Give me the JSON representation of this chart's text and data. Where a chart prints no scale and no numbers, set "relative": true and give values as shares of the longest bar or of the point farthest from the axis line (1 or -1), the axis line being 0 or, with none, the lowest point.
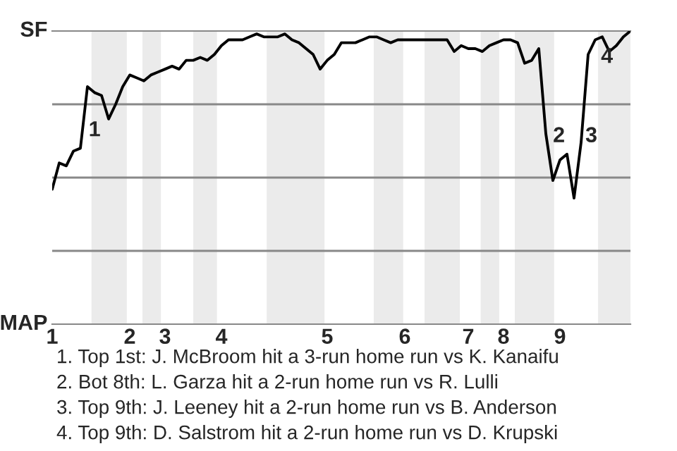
{
  "chart_data": {
    "type": "line",
    "relative": true,
    "categories": [
      "1",
      null,
      null,
      null,
      null,
      null,
      null,
      null,
      null,
      null,
      null,
      "2",
      null,
      null,
      null,
      null,
      "3",
      null,
      null,
      null,
      null,
      null,
      null,
      null,
      "4",
      null,
      null,
      null,
      null,
      null,
      null,
      null,
      null,
      null,
      null,
      null,
      null,
      null,
      null,
      "5",
      null,
      null,
      null,
      null,
      null,
      null,
      null,
      null,
      null,
      null,
      "6",
      null,
      null,
      null,
      null,
      null,
      null,
      null,
      null,
      "7",
      null,
      null,
      null,
      null,
      "8",
      null,
      null,
      null,
      null,
      null,
      null,
      null,
      "9",
      null,
      null,
      null,
      null,
      null,
      null,
      null,
      null,
      null,
      null
    ],
    "series": [
      {
        "color": "#000000",
        "values": [
          0.46,
          0.55,
          0.54,
          0.59,
          0.6,
          0.81,
          0.79,
          0.78,
          0.7,
          0.75,
          0.81,
          0.85,
          0.84,
          0.83,
          0.85,
          0.86,
          0.87,
          0.88,
          0.87,
          0.9,
          0.9,
          0.91,
          0.9,
          0.92,
          0.95,
          0.97,
          0.97,
          0.97,
          0.98,
          0.99,
          0.98,
          0.98,
          0.98,
          0.99,
          0.97,
          0.96,
          0.94,
          0.92,
          0.87,
          0.9,
          0.92,
          0.96,
          0.96,
          0.96,
          0.97,
          0.98,
          0.98,
          0.97,
          0.96,
          0.97,
          0.97,
          0.97,
          0.97,
          0.97,
          0.97,
          0.97,
          0.97,
          0.93,
          0.95,
          0.94,
          0.94,
          0.93,
          0.95,
          0.96,
          0.97,
          0.97,
          0.96,
          0.89,
          0.9,
          0.94,
          0.65,
          0.49,
          0.56,
          0.58,
          0.43,
          0.62,
          0.92,
          0.97,
          0.98,
          0.93,
          0.95,
          0.98,
          1.0
        ]
      }
    ],
    "ref_lines": [
      {
        "axis": "y",
        "value": 0.25,
        "color": "#888888"
      },
      {
        "axis": "y",
        "value": 0.5,
        "color": "#888888"
      },
      {
        "axis": "y",
        "value": 0.75,
        "color": "#888888"
      }
    ],
    "annotations": [
      "SF",
      "MAP",
      "1",
      "2",
      "3",
      "4",
      "1. Top 1st: J. McBroom hit a 3-run home run vs K. Kanaifu",
      "2. Bot 8th: L. Garza hit a 2-run home run vs R. Lulli",
      "3. Top 9th: J. Leeney hit a 2-run home run vs B. Anderson",
      "4. Top 9th: D. Salstrom hit a 2-run home run vs D. Krupski"
    ]
  }
}
